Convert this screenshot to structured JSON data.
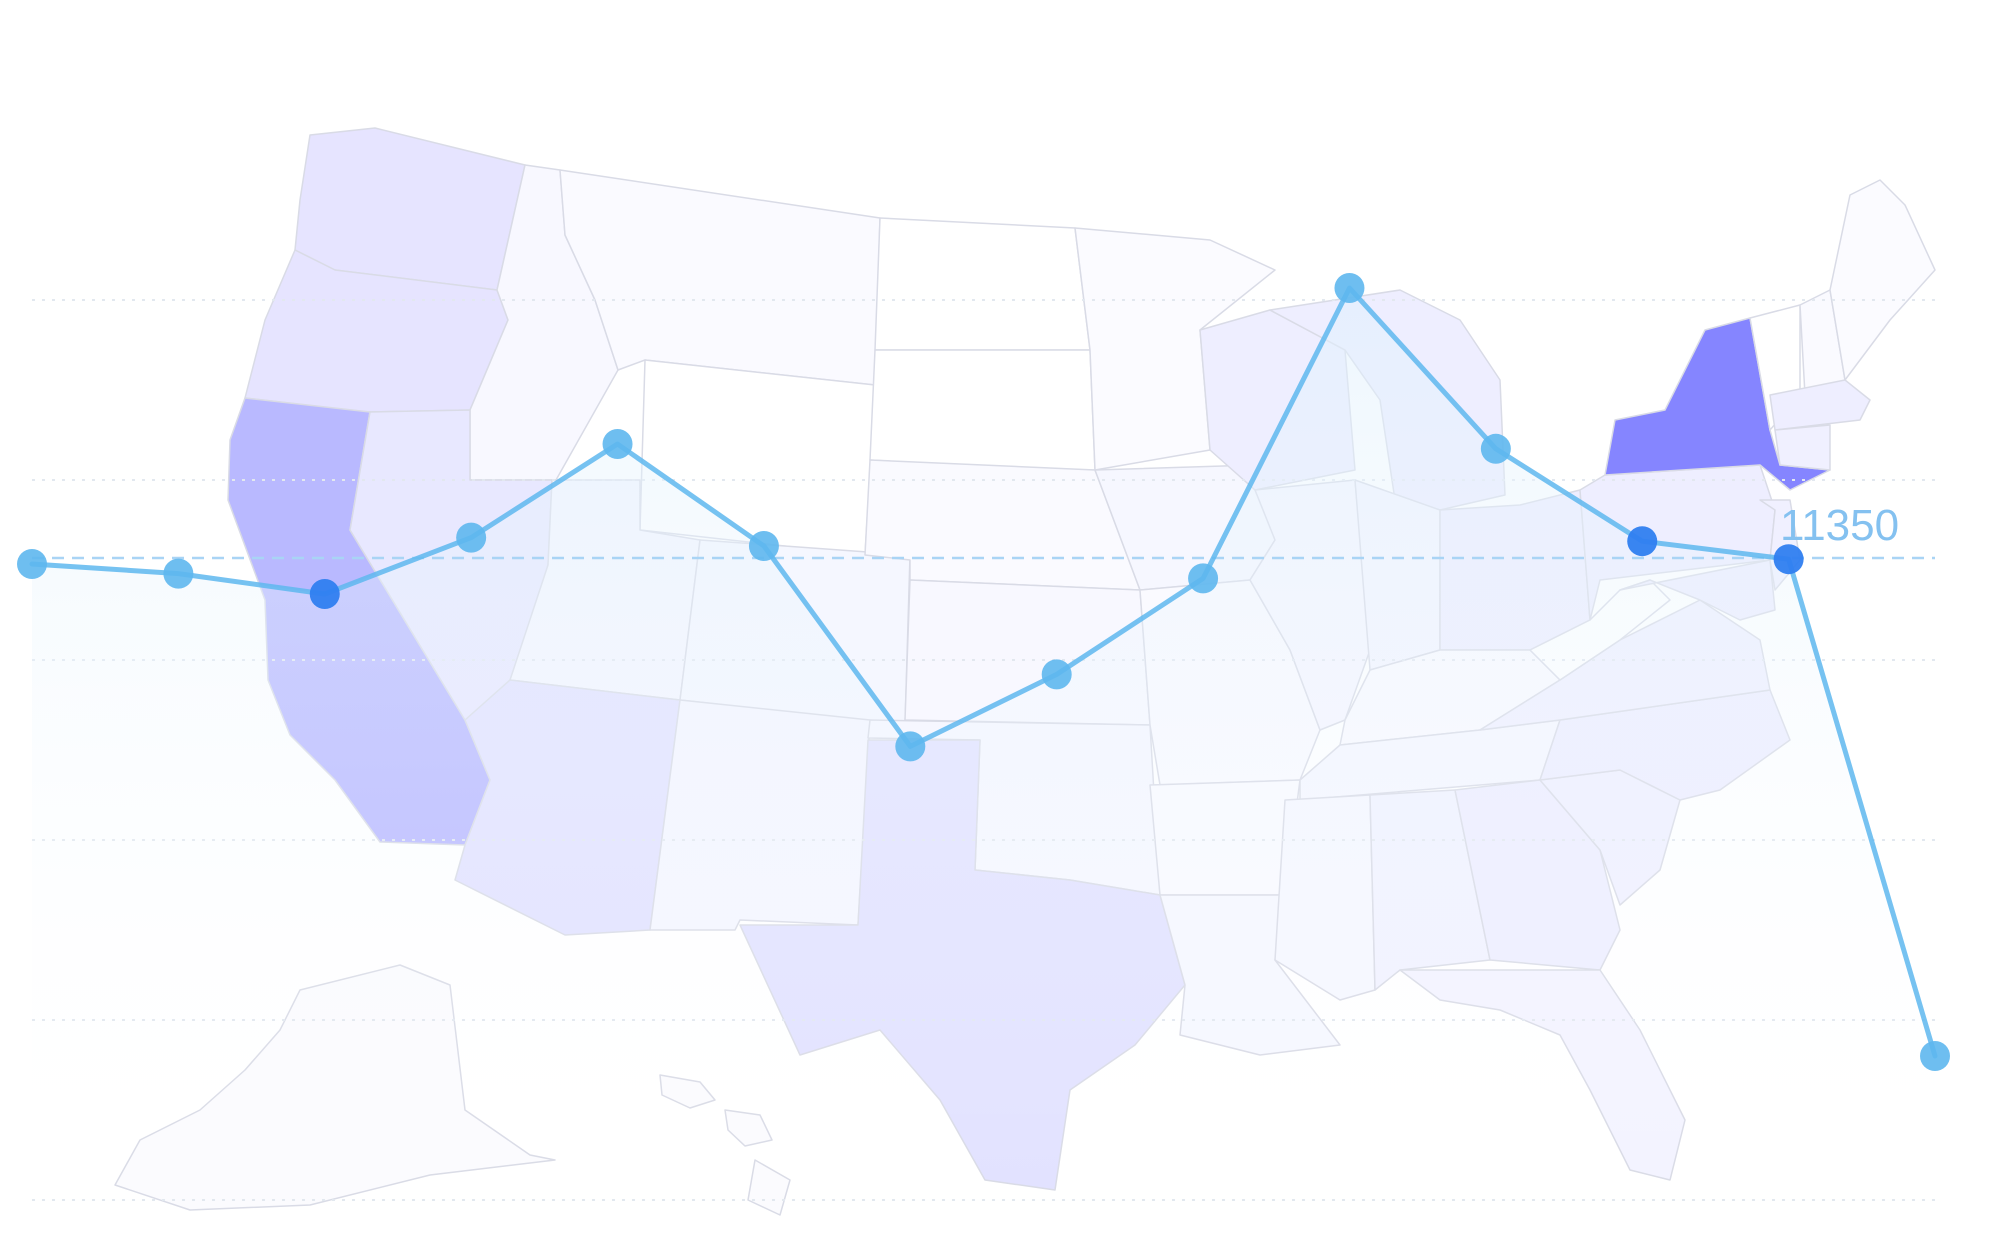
{
  "chart_data": {
    "type": "line",
    "title": "",
    "xlabel": "",
    "ylabel": "",
    "grid": true,
    "area_fill": true,
    "ylim": [
      6000,
      14000
    ],
    "markline": {
      "value": 11350,
      "label": "11350",
      "style": "dashed"
    },
    "series": [
      {
        "values": [
          11300,
          11220,
          11050,
          11520,
          12300,
          11450,
          9780,
          10380,
          11180,
          13600,
          12260,
          11490,
          11340,
          7200
        ],
        "color": "#5eb7ee"
      }
    ],
    "highlighted_points": [
      2,
      11,
      12
    ],
    "map_background": {
      "region": "United States",
      "colors": {
        "highest": "#8585ff",
        "high": "#b9b9ff",
        "medium": "#e0e0ff",
        "low": "#eeeeff",
        "lowest": "#f7f8ff",
        "none": "#ffffff"
      }
    },
    "colors": {
      "line": "#5eb7ee",
      "highlight_point": "#2f7ef0",
      "grid": "#e2e8ef",
      "markline": "#a9d4f5",
      "markline_label": "#84c1f0"
    }
  }
}
